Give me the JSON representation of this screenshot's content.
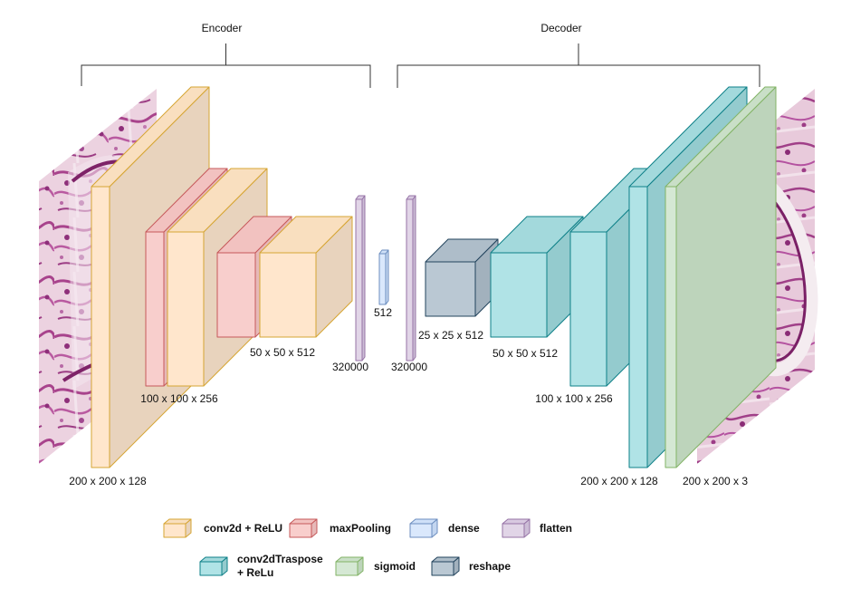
{
  "sections": {
    "encoder": "Encoder",
    "decoder": "Decoder"
  },
  "colors": {
    "conv": {
      "front": "#ffe6cc",
      "side": "#e8d3bd",
      "top": "#f9dfbf",
      "stroke": "#d6a533"
    },
    "pool": {
      "front": "#f8cecc",
      "side": "#e6b9b8",
      "top": "#f2c2c0",
      "stroke": "#c6585a"
    },
    "dense": {
      "front": "#dae8fc",
      "side": "#c3d6f0",
      "top": "#cfe0f8",
      "stroke": "#6c8ebf"
    },
    "flatten": {
      "front": "#e1d5e7",
      "side": "#ccbdd6",
      "top": "#d8c9e0",
      "stroke": "#9673a6"
    },
    "deconv": {
      "front": "#b0e3e6",
      "side": "#94cbce",
      "top": "#a3d9dc",
      "stroke": "#0e8088"
    },
    "sigmoid": {
      "front": "#d5e8d4",
      "side": "#bdd4bb",
      "top": "#c9dfc7",
      "stroke": "#82b366"
    },
    "reshape": {
      "front": "#bac8d3",
      "side": "#a2b1bd",
      "top": "#aebdc9",
      "stroke": "#23445d"
    }
  },
  "images": {
    "input": "histology-input-image",
    "output": "histology-output-image"
  },
  "layer_labels": {
    "enc_conv1": "200 x 200 x 128",
    "enc_conv2": "100 x 100 x 256",
    "enc_conv3": "50 x 50 x 512",
    "flatten1": "320000",
    "dense": "512",
    "flatten2": "320000",
    "reshape": "25 x 25 x 512",
    "dec_conv1": "50 x 50 x 512",
    "dec_conv2": "100 x 100 x 256",
    "dec_conv3": "200 x 200 x 128",
    "sigmoid": "200 x 200 x 3"
  },
  "legend": {
    "conv": "conv2d + ReLU",
    "pool": "maxPooling",
    "dense": "dense",
    "flatten": "flatten",
    "deconv_line1": "conv2dTraspose",
    "deconv_line2": "+ ReLu",
    "sigmoid": "sigmoid",
    "reshape": "reshape"
  }
}
